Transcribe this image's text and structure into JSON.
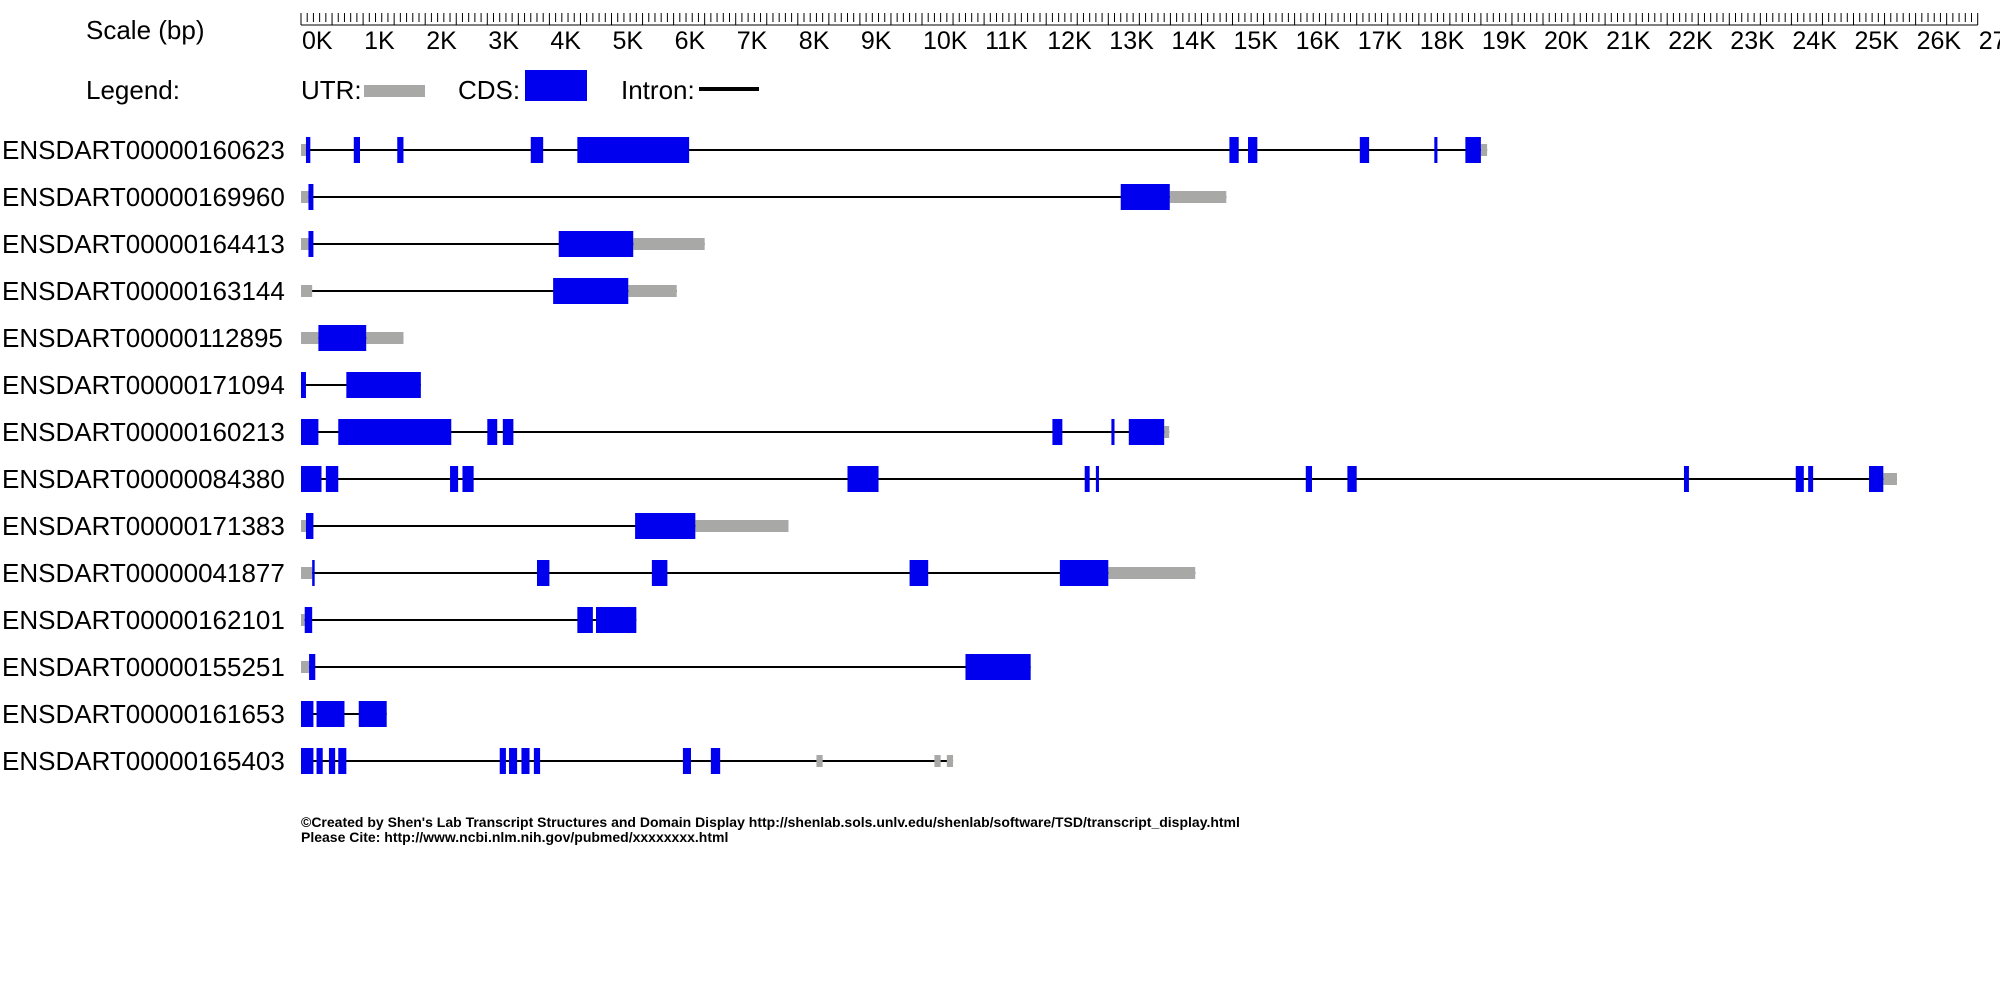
{
  "header": {
    "scale_label": "Scale (bp)",
    "legend_label": "Legend:",
    "legend_utr": "UTR:",
    "legend_cds": "CDS:",
    "legend_intron": "Intron:"
  },
  "colors": {
    "utr": "#a8a8a6",
    "cds": "#0000ee",
    "intron": "#000000"
  },
  "chart_data": {
    "type": "gene-structure",
    "units": "bp",
    "axis": {
      "max": 27000,
      "major_step": 1000,
      "minor_step": 100,
      "tick_labels": [
        "0K",
        "1K",
        "2K",
        "3K",
        "4K",
        "5K",
        "6K",
        "7K",
        "8K",
        "9K",
        "10K",
        "11K",
        "12K",
        "13K",
        "14K",
        "15K",
        "16K",
        "17K",
        "18K",
        "19K",
        "20K",
        "21K",
        "22K",
        "23K",
        "24K",
        "25K",
        "26K",
        "27"
      ]
    },
    "transcripts": [
      {
        "id": "ENSDART00000160623",
        "utr": [
          [
            0,
            80
          ],
          [
            19000,
            19100
          ]
        ],
        "cds": [
          [
            80,
            150
          ],
          [
            850,
            950
          ],
          [
            1550,
            1650
          ],
          [
            3700,
            3900
          ],
          [
            4450,
            6250
          ],
          [
            14950,
            15100
          ],
          [
            15250,
            15400
          ],
          [
            17050,
            17200
          ],
          [
            18250,
            18300
          ],
          [
            18750,
            19000
          ]
        ]
      },
      {
        "id": "ENSDART00000169960",
        "utr": [
          [
            0,
            120
          ],
          [
            13990,
            14900
          ]
        ],
        "cds": [
          [
            120,
            200
          ],
          [
            13200,
            13990
          ]
        ]
      },
      {
        "id": "ENSDART00000164413",
        "utr": [
          [
            0,
            120
          ],
          [
            5350,
            6500
          ]
        ],
        "cds": [
          [
            120,
            200
          ],
          [
            4150,
            5350
          ]
        ]
      },
      {
        "id": "ENSDART00000163144",
        "utr": [
          [
            0,
            180
          ],
          [
            5270,
            6050
          ]
        ],
        "cds": [
          [
            4060,
            5270
          ]
        ]
      },
      {
        "id": "ENSDART00000112895",
        "utr": [
          [
            0,
            280
          ],
          [
            1050,
            1650
          ]
        ],
        "cds": [
          [
            280,
            1050
          ]
        ]
      },
      {
        "id": "ENSDART00000171094",
        "utr": [],
        "cds": [
          [
            0,
            80
          ],
          [
            730,
            1930
          ]
        ]
      },
      {
        "id": "ENSDART00000160213",
        "utr": [
          [
            13900,
            13980
          ]
        ],
        "cds": [
          [
            0,
            280
          ],
          [
            600,
            2420
          ],
          [
            3000,
            3160
          ],
          [
            3250,
            3420
          ],
          [
            12100,
            12260
          ],
          [
            13050,
            13100
          ],
          [
            13330,
            13900
          ]
        ]
      },
      {
        "id": "ENSDART00000084380",
        "utr": [
          [
            25480,
            25700
          ]
        ],
        "cds": [
          [
            0,
            330
          ],
          [
            400,
            600
          ],
          [
            2400,
            2530
          ],
          [
            2600,
            2780
          ],
          [
            8800,
            9300
          ],
          [
            12620,
            12700
          ],
          [
            12800,
            12850
          ],
          [
            16180,
            16280
          ],
          [
            16850,
            17000
          ],
          [
            22270,
            22350
          ],
          [
            24070,
            24200
          ],
          [
            24270,
            24350
          ],
          [
            25250,
            25480
          ]
        ]
      },
      {
        "id": "ENSDART00000171383",
        "utr": [
          [
            0,
            80
          ],
          [
            6350,
            7850
          ]
        ],
        "cds": [
          [
            80,
            200
          ],
          [
            5380,
            6350
          ]
        ]
      },
      {
        "id": "ENSDART00000041877",
        "utr": [
          [
            0,
            180
          ],
          [
            13000,
            14400
          ]
        ],
        "cds": [
          [
            180,
            220
          ],
          [
            3800,
            4000
          ],
          [
            5650,
            5900
          ],
          [
            9800,
            10100
          ],
          [
            12220,
            13000
          ]
        ]
      },
      {
        "id": "ENSDART00000162101",
        "utr": [
          [
            0,
            60
          ]
        ],
        "cds": [
          [
            60,
            180
          ],
          [
            4450,
            4700
          ],
          [
            4750,
            5400
          ]
        ]
      },
      {
        "id": "ENSDART00000155251",
        "utr": [
          [
            0,
            130
          ]
        ],
        "cds": [
          [
            130,
            230
          ],
          [
            10700,
            11750
          ]
        ]
      },
      {
        "id": "ENSDART00000161653",
        "utr": [],
        "cds": [
          [
            0,
            200
          ],
          [
            250,
            700
          ],
          [
            930,
            1380
          ]
        ]
      },
      {
        "id": "ENSDART00000165403",
        "utr": [
          [
            8300,
            8400
          ],
          [
            10200,
            10300
          ],
          [
            10400,
            10500
          ]
        ],
        "cds": [
          [
            0,
            200
          ],
          [
            250,
            350
          ],
          [
            450,
            550
          ],
          [
            600,
            730
          ],
          [
            3200,
            3300
          ],
          [
            3350,
            3480
          ],
          [
            3550,
            3680
          ],
          [
            3750,
            3850
          ],
          [
            6150,
            6280
          ],
          [
            6600,
            6750
          ]
        ]
      }
    ]
  },
  "footer": {
    "line1": "©Created by Shen's Lab Transcript Structures and Domain Display http://shenlab.sols.unlv.edu/shenlab/software/TSD/transcript_display.html",
    "line2": "Please Cite: http://www.ncbi.nlm.nih.gov/pubmed/xxxxxxxx.html"
  }
}
